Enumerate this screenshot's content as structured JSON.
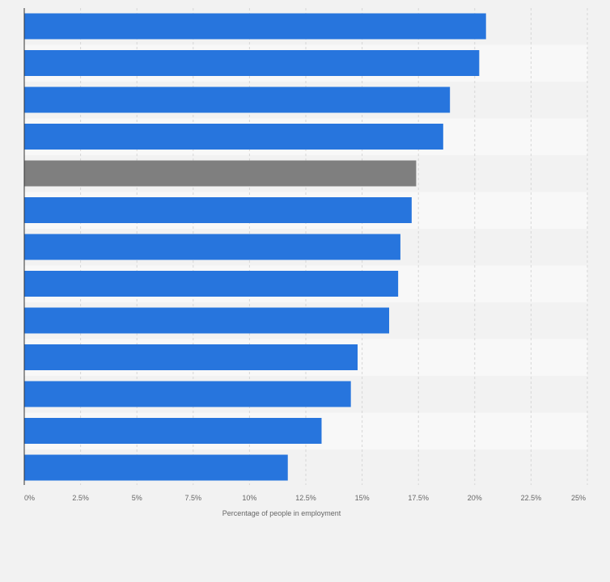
{
  "chart_data": {
    "type": "bar",
    "orientation": "horizontal",
    "title": "",
    "xlabel": "Percentage of people in employment",
    "ylabel": "",
    "xlim": [
      0,
      25
    ],
    "xticks": [
      {
        "value": 0,
        "label": "0%"
      },
      {
        "value": 2.5,
        "label": "2.5%"
      },
      {
        "value": 5,
        "label": "5%"
      },
      {
        "value": 7.5,
        "label": "7.5%"
      },
      {
        "value": 10,
        "label": "10%"
      },
      {
        "value": 12.5,
        "label": "12.5%"
      },
      {
        "value": 15,
        "label": "15%"
      },
      {
        "value": 17.5,
        "label": "17.5%"
      },
      {
        "value": 20,
        "label": "20%"
      },
      {
        "value": 22.5,
        "label": "22.5%"
      },
      {
        "value": 25,
        "label": "25%"
      }
    ],
    "values": [
      20.5,
      20.2,
      18.9,
      18.6,
      17.4,
      17.2,
      16.7,
      16.6,
      16.2,
      14.8,
      14.5,
      13.2,
      11.7
    ],
    "highlight_index": 4,
    "grid": true,
    "colors": {
      "bar": "#2775dd",
      "highlight": "#7f7f7f",
      "band_dark": "#f2f2f2",
      "band_light": "#f8f8f8",
      "grid": "#d6d6d6",
      "axis": "#333333"
    }
  }
}
